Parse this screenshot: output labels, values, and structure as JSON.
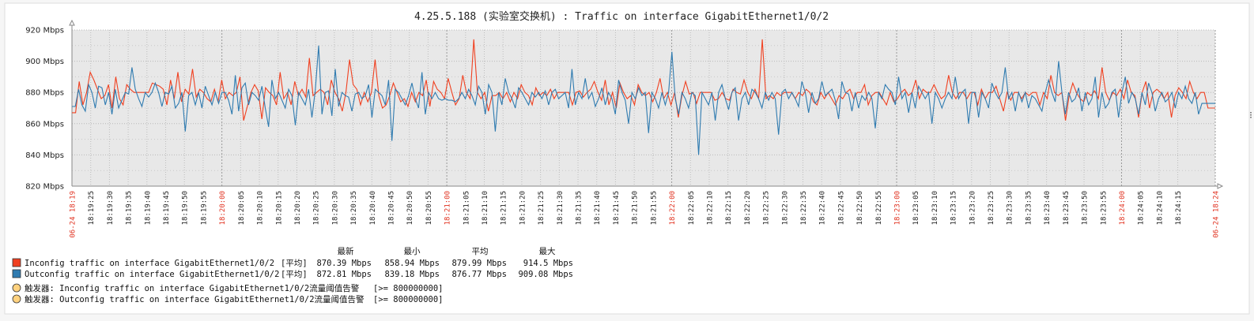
{
  "colors": {
    "in": "#f04020",
    "out": "#2f7bb0",
    "plot_bg": "#e8e8e8",
    "major_tick": "#e0301e",
    "trigger": "#ffd27f"
  },
  "chart_data": {
    "type": "line",
    "title": "4.25.5.188 (实验室交换机) : Traffic on interface GigabitEthernet1/0/2",
    "ylim": [
      820,
      920
    ],
    "y_ticks": [
      "820 Mbps",
      "840 Mbps",
      "860 Mbps",
      "880 Mbps",
      "900 Mbps",
      "920 Mbps"
    ],
    "y_tick_values": [
      820,
      840,
      860,
      880,
      900,
      920
    ],
    "x_range_seconds": [
      0,
      305
    ],
    "x_ticks": [
      {
        "t": 0,
        "label": "06-24 18:19",
        "major": true
      },
      {
        "t": 5,
        "label": "18:19:25"
      },
      {
        "t": 10,
        "label": "18:19:30"
      },
      {
        "t": 15,
        "label": "18:19:35"
      },
      {
        "t": 20,
        "label": "18:19:40"
      },
      {
        "t": 25,
        "label": "18:19:45"
      },
      {
        "t": 30,
        "label": "18:19:50"
      },
      {
        "t": 35,
        "label": "18:19:55"
      },
      {
        "t": 40,
        "label": "18:20:00",
        "major": true
      },
      {
        "t": 45,
        "label": "18:20:05"
      },
      {
        "t": 50,
        "label": "18:20:10"
      },
      {
        "t": 55,
        "label": "18:20:15"
      },
      {
        "t": 60,
        "label": "18:20:20"
      },
      {
        "t": 65,
        "label": "18:20:25"
      },
      {
        "t": 70,
        "label": "18:20:30"
      },
      {
        "t": 75,
        "label": "18:20:35"
      },
      {
        "t": 80,
        "label": "18:20:40"
      },
      {
        "t": 85,
        "label": "18:20:45"
      },
      {
        "t": 90,
        "label": "18:20:50"
      },
      {
        "t": 95,
        "label": "18:20:55"
      },
      {
        "t": 100,
        "label": "18:21:00",
        "major": true
      },
      {
        "t": 105,
        "label": "18:21:05"
      },
      {
        "t": 110,
        "label": "18:21:10"
      },
      {
        "t": 115,
        "label": "18:21:15"
      },
      {
        "t": 120,
        "label": "18:21:20"
      },
      {
        "t": 125,
        "label": "18:21:25"
      },
      {
        "t": 130,
        "label": "18:21:30"
      },
      {
        "t": 135,
        "label": "18:21:35"
      },
      {
        "t": 140,
        "label": "18:21:40"
      },
      {
        "t": 145,
        "label": "18:21:45"
      },
      {
        "t": 150,
        "label": "18:21:50"
      },
      {
        "t": 155,
        "label": "18:21:55"
      },
      {
        "t": 160,
        "label": "18:22:00",
        "major": true
      },
      {
        "t": 165,
        "label": "18:22:05"
      },
      {
        "t": 170,
        "label": "18:22:10"
      },
      {
        "t": 175,
        "label": "18:22:15"
      },
      {
        "t": 180,
        "label": "18:22:20"
      },
      {
        "t": 185,
        "label": "18:22:25"
      },
      {
        "t": 190,
        "label": "18:22:30"
      },
      {
        "t": 195,
        "label": "18:22:35"
      },
      {
        "t": 200,
        "label": "18:22:40"
      },
      {
        "t": 205,
        "label": "18:22:45"
      },
      {
        "t": 210,
        "label": "18:22:50"
      },
      {
        "t": 215,
        "label": "18:22:55"
      },
      {
        "t": 220,
        "label": "18:23:00",
        "major": true
      },
      {
        "t": 225,
        "label": "18:23:05"
      },
      {
        "t": 230,
        "label": "18:23:10"
      },
      {
        "t": 235,
        "label": "18:23:15"
      },
      {
        "t": 240,
        "label": "18:23:20"
      },
      {
        "t": 245,
        "label": "18:23:25"
      },
      {
        "t": 250,
        "label": "18:23:30"
      },
      {
        "t": 255,
        "label": "18:23:35"
      },
      {
        "t": 260,
        "label": "18:23:40"
      },
      {
        "t": 265,
        "label": "18:23:45"
      },
      {
        "t": 270,
        "label": "18:23:50"
      },
      {
        "t": 275,
        "label": "18:23:55"
      },
      {
        "t": 280,
        "label": "18:24:00",
        "major": true
      },
      {
        "t": 285,
        "label": "18:24:05"
      },
      {
        "t": 290,
        "label": "18:24:10"
      },
      {
        "t": 295,
        "label": "18:24:15"
      },
      {
        "t": 305,
        "label": "06-24 18:24",
        "major": true
      }
    ],
    "series": [
      {
        "name": "Inconfig traffic on interface GigabitEthernet1/0/2",
        "color": "#f04020",
        "values": [
          867,
          867,
          887,
          872,
          880,
          893,
          888,
          882,
          876,
          878,
          885,
          870,
          890,
          876,
          872,
          885,
          882,
          880,
          880,
          880,
          880,
          880,
          886,
          885,
          884,
          882,
          872,
          888,
          876,
          893,
          874,
          882,
          879,
          895,
          877,
          882,
          880,
          876,
          874,
          882,
          874,
          888,
          876,
          880,
          878,
          880,
          890,
          862,
          871,
          880,
          885,
          881,
          863,
          883,
          880,
          878,
          872,
          893,
          876,
          880,
          872,
          887,
          878,
          882,
          877,
          902,
          878,
          880,
          882,
          880,
          872,
          888,
          880,
          876,
          868,
          880,
          901,
          885,
          882,
          872,
          880,
          874,
          880,
          901,
          878,
          870,
          872,
          878,
          886,
          880,
          874,
          876,
          871,
          880,
          874,
          880,
          878,
          888,
          871,
          887,
          882,
          880,
          876,
          889,
          880,
          872,
          876,
          891,
          880,
          876,
          914,
          880,
          876,
          880,
          868,
          878,
          878,
          880,
          876,
          880,
          874,
          880,
          876,
          885,
          880,
          878,
          872,
          883,
          878,
          880,
          878,
          882,
          876,
          880,
          880,
          880,
          880,
          872,
          880,
          881,
          877,
          880,
          882,
          887,
          880,
          875,
          888,
          872,
          880,
          870,
          886,
          880,
          876,
          878,
          872,
          885,
          880,
          878,
          880,
          874,
          880,
          889,
          876,
          880,
          872,
          880,
          864,
          878,
          887,
          879,
          880,
          873,
          880,
          880,
          880,
          880,
          875,
          876,
          880,
          876,
          875,
          882,
          880,
          879,
          888,
          880,
          876,
          882,
          876,
          914,
          876,
          878,
          876,
          880,
          878,
          880,
          880,
          880,
          876,
          880,
          878,
          882,
          880,
          874,
          872,
          880,
          876,
          880,
          876,
          872,
          878,
          876,
          880,
          882,
          876,
          880,
          880,
          885,
          872,
          878,
          880,
          880,
          876,
          872,
          880,
          874,
          876,
          880,
          882,
          878,
          880,
          888,
          876,
          882,
          880,
          880,
          885,
          880,
          876,
          878,
          891,
          880,
          876,
          880,
          880,
          876,
          880,
          880,
          872,
          882,
          876,
          880,
          880,
          884,
          876,
          868,
          880,
          875,
          880,
          880,
          876,
          880,
          878,
          880,
          880,
          872,
          880,
          876,
          891,
          880,
          878,
          880,
          862,
          878,
          886,
          880,
          876,
          874,
          880,
          878,
          881,
          876,
          896,
          880,
          875,
          880,
          878,
          882,
          876,
          888,
          880,
          878,
          864,
          880,
          887,
          870,
          880,
          882,
          880,
          876,
          880,
          864,
          878,
          883,
          880,
          876,
          887,
          880,
          876,
          880,
          880,
          870,
          870,
          870
        ]
      },
      {
        "name": "Outconfig traffic on interface GigabitEthernet1/0/2",
        "color": "#2f7bb0",
        "values": [
          871,
          871,
          882,
          872,
          868,
          885,
          880,
          870,
          884,
          883,
          872,
          880,
          866,
          882,
          870,
          875,
          880,
          879,
          896,
          882,
          876,
          871,
          880,
          877,
          880,
          886,
          880,
          871,
          880,
          879,
          884,
          870,
          873,
          880,
          855,
          878,
          880,
          872,
          880,
          870,
          884,
          878,
          872,
          880,
          873,
          880,
          880,
          875,
          866,
          891,
          868,
          883,
          886,
          872,
          880,
          878,
          875,
          884,
          870,
          858,
          888,
          876,
          880,
          875,
          870,
          882,
          878,
          859,
          880,
          876,
          872,
          882,
          864,
          881,
          910,
          866,
          880,
          881,
          865,
          895,
          871,
          880,
          878,
          877,
          868,
          879,
          880,
          876,
          878,
          885,
          864,
          882,
          880,
          878,
          872,
          888,
          849,
          882,
          880,
          876,
          872,
          878,
          886,
          876,
          870,
          893,
          866,
          880,
          876,
          880,
          876,
          875,
          876,
          875,
          875,
          874,
          876,
          880,
          876,
          882,
          878,
          872,
          884,
          880,
          866,
          885,
          880,
          855,
          880,
          872,
          889,
          880,
          876,
          870,
          883,
          880,
          876,
          872,
          880,
          877,
          880,
          876,
          881,
          872,
          880,
          882,
          876,
          878,
          880,
          870,
          895,
          872,
          880,
          876,
          889,
          876,
          880,
          871,
          876,
          883,
          872,
          880,
          876,
          866,
          888,
          880,
          875,
          860,
          880,
          876,
          883,
          878,
          880,
          854,
          880,
          876,
          870,
          880,
          872,
          880,
          906,
          876,
          866,
          880,
          876,
          870,
          880,
          878,
          840,
          880,
          876,
          872,
          880,
          862,
          880,
          885,
          876,
          869,
          880,
          883,
          862,
          876,
          880,
          872,
          882,
          880,
          876,
          870,
          880,
          875,
          880,
          876,
          853,
          880,
          882,
          876,
          880,
          876,
          871,
          887,
          880,
          867,
          880,
          873,
          876,
          887,
          878,
          880,
          882,
          875,
          863,
          887,
          880,
          879,
          868,
          880,
          870,
          878,
          875,
          880,
          876,
          857,
          880,
          876,
          885,
          882,
          880,
          872,
          890,
          876,
          880,
          867,
          880,
          870,
          884,
          880,
          876,
          880,
          860,
          880,
          876,
          870,
          876,
          880,
          876,
          890,
          876,
          880,
          882,
          860,
          880,
          880,
          864,
          880,
          876,
          870,
          886,
          880,
          876,
          880,
          896,
          876,
          880,
          868,
          880,
          874,
          880,
          870,
          878,
          876,
          872,
          868,
          880,
          888,
          880,
          874,
          900,
          880,
          866,
          880,
          874,
          876,
          883,
          868,
          880,
          872,
          876,
          890,
          864,
          880,
          870,
          873,
          880,
          882,
          864,
          880,
          890,
          873,
          880,
          876,
          866,
          880,
          872,
          886,
          880,
          868,
          876,
          880,
          874,
          876,
          880,
          870,
          880,
          876,
          884,
          876,
          873,
          880,
          866,
          873,
          873,
          873,
          873,
          873
        ]
      }
    ]
  },
  "legend": {
    "headers": [
      "最新",
      "最小",
      "平均",
      "最大"
    ],
    "rows": [
      {
        "label": "Inconfig traffic on interface GigabitEthernet1/0/2",
        "tag": "[平均]",
        "last": "870.39 Mbps",
        "min": "858.94 Mbps",
        "avg": "879.99 Mbps",
        "max": "914.5 Mbps"
      },
      {
        "label": "Outconfig traffic on interface GigabitEthernet1/0/2",
        "tag": "[平均]",
        "last": "872.81 Mbps",
        "min": "839.18 Mbps",
        "avg": "876.77 Mbps",
        "max": "909.08 Mbps"
      }
    ],
    "triggers": [
      {
        "label": "触发器: Inconfig traffic on interface GigabitEthernet1/0/2流量阈值告警",
        "cond": "[>= 800000000]"
      },
      {
        "label": "触发器: Outconfig traffic on interface GigabitEthernet1/0/2流量阈值告警",
        "cond": "[>= 800000000]"
      }
    ]
  }
}
